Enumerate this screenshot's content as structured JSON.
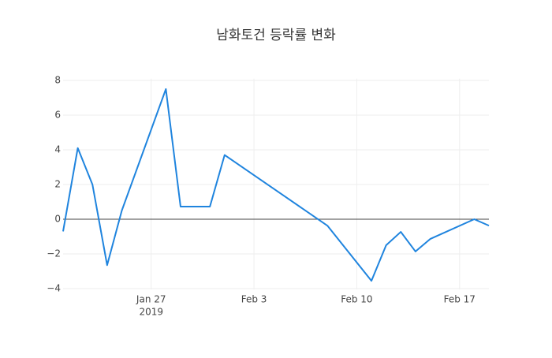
{
  "chart_data": {
    "type": "line",
    "title": "남화토건 등락률 변화",
    "x": [
      "2019-01-21",
      "2019-01-22",
      "2019-01-23",
      "2019-01-24",
      "2019-01-25",
      "2019-01-28",
      "2019-01-29",
      "2019-01-31",
      "2019-02-01",
      "2019-02-08",
      "2019-02-11",
      "2019-02-12",
      "2019-02-13",
      "2019-02-14",
      "2019-02-15",
      "2019-02-18",
      "2019-02-19"
    ],
    "series": [
      {
        "color": "#1f84de",
        "values": [
          -0.7,
          4.1,
          2.0,
          -2.65,
          0.5,
          7.5,
          0.73,
          0.73,
          3.7,
          -0.37,
          -3.55,
          -1.5,
          -0.73,
          -1.86,
          -1.14,
          0,
          -0.37
        ]
      }
    ],
    "xlim": [
      "2019-01-21",
      "2019-02-19"
    ],
    "xticks": [
      {
        "value": "2019-01-27",
        "label": "Jan 27"
      },
      {
        "value": "2019-02-03",
        "label": "Feb 3"
      },
      {
        "value": "2019-02-10",
        "label": "Feb 10"
      },
      {
        "value": "2019-02-17",
        "label": "Feb 17"
      }
    ],
    "xtick_year": "2019",
    "ylim": [
      -4.05,
      8.1
    ],
    "yticks": [
      {
        "value": -4,
        "label": "−4"
      },
      {
        "value": -2,
        "label": "−2"
      },
      0,
      2,
      4,
      6,
      8
    ],
    "grid": true,
    "zeroline": true
  }
}
